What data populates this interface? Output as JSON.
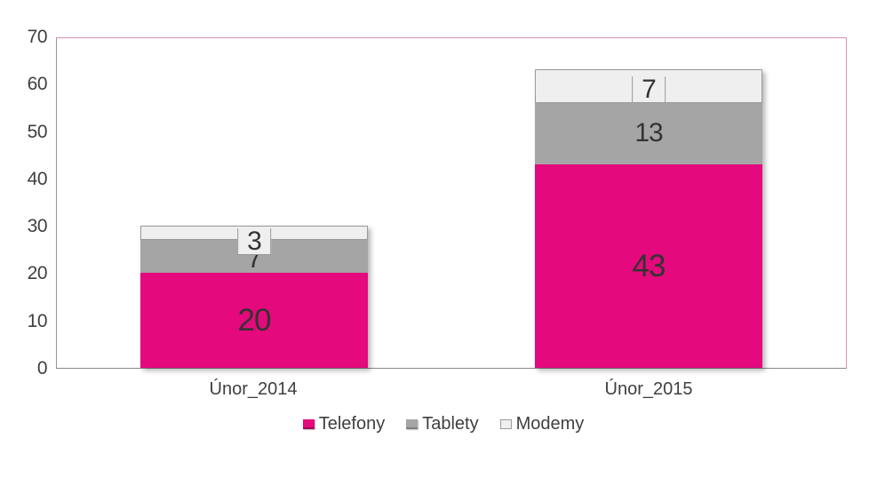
{
  "chart_data": {
    "type": "bar",
    "stacked": true,
    "categories": [
      "Únor_2014",
      "Únor_2015"
    ],
    "series": [
      {
        "name": "Telefony",
        "color": "#E4097C",
        "values": [
          20,
          43
        ]
      },
      {
        "name": "Tablety",
        "color": "#A5A5A5",
        "values": [
          7,
          13
        ]
      },
      {
        "name": "Modemy",
        "color": "#EFEFEF",
        "values": [
          3,
          7
        ]
      }
    ],
    "totals": [
      30,
      63
    ],
    "ylim": [
      0,
      70
    ],
    "yticks": [
      70,
      60,
      50,
      40,
      30,
      20,
      10,
      0
    ],
    "grid": false,
    "legend_position": "bottom"
  },
  "colors": {
    "background": "#FFFFFF",
    "plot_border_accent": "#DA8FB4",
    "axis_line": "#969696",
    "tick_label_text": "#3F3F3F",
    "data_label_text": "#333333",
    "modemy_border": "#9A9A9A",
    "legend_telefony_edge": "#A30559",
    "legend_tablety_edge": "#7F7F7F"
  }
}
